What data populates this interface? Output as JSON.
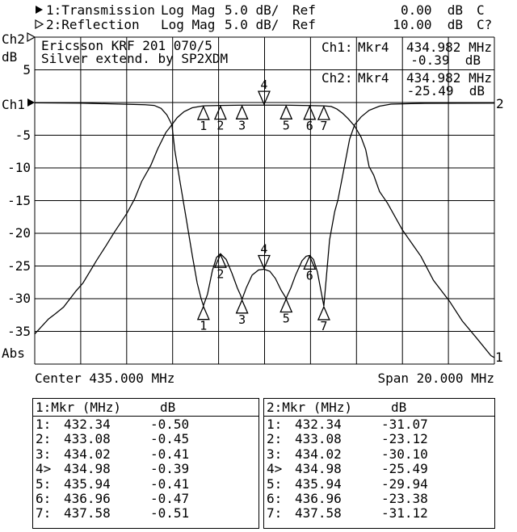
{
  "header": {
    "line1": {
      "pointer": "filled-right-triangle",
      "label": "1:Transmission",
      "format": "Log Mag",
      "scale": "5.0 dB/",
      "ref_label": "Ref",
      "ref_value": "0.00  dB",
      "cal": "C"
    },
    "line2": {
      "pointer": "open-right-triangle",
      "label": "2:Reflection",
      "format": "Log Mag",
      "scale": "5.0 dB/",
      "ref_label": "Ref",
      "ref_value": "10.00  dB",
      "cal": "C?"
    }
  },
  "left_axis": {
    "ch2_label": "Ch2",
    "db_label": "dB",
    "ch1_label": "Ch1",
    "abs_label": "Abs",
    "tick_labels": [
      "5",
      "-5",
      "-10",
      "-15",
      "-20",
      "-25",
      "-30",
      "-35"
    ]
  },
  "right_edge": {
    "trace2_label": "2",
    "trace1_label": "1"
  },
  "annotation": {
    "line1": "Ericsson KRF 201 070/5",
    "line2": "Silver extend. by SP2XDM"
  },
  "readouts": {
    "ch1": {
      "label": "Ch1:",
      "mkr": "Mkr4",
      "freq": "434.982 MHz",
      "value": "-0.39  dB"
    },
    "ch2": {
      "label": "Ch2:",
      "mkr": "Mkr4",
      "freq": "434.982 MHz",
      "value": "-25.49  dB"
    }
  },
  "x_axis": {
    "center": "Center 435.000 MHz",
    "span": "Span 20.000 MHz"
  },
  "tables": [
    {
      "title": "1:Mkr (MHz)",
      "unit": "dB",
      "rows": [
        [
          "1:",
          "432.34",
          "-0.50"
        ],
        [
          "2:",
          "433.08",
          "-0.45"
        ],
        [
          "3:",
          "434.02",
          "-0.41"
        ],
        [
          "4>",
          "434.98",
          "-0.39"
        ],
        [
          "5:",
          "435.94",
          "-0.41"
        ],
        [
          "6:",
          "436.96",
          "-0.47"
        ],
        [
          "7:",
          "437.58",
          "-0.51"
        ]
      ]
    },
    {
      "title": "2:Mkr (MHz)",
      "unit": "dB",
      "rows": [
        [
          "1:",
          "432.34",
          "-31.07"
        ],
        [
          "2:",
          "433.08",
          "-23.12"
        ],
        [
          "3:",
          "434.02",
          "-30.10"
        ],
        [
          "4>",
          "434.98",
          "-25.49"
        ],
        [
          "5:",
          "435.94",
          "-29.94"
        ],
        [
          "6:",
          "436.96",
          "-23.38"
        ],
        [
          "7:",
          "437.58",
          "-31.12"
        ]
      ]
    }
  ],
  "chart_data": {
    "type": "line",
    "title": "Ericsson KRF 201 070/5 bandpass filter - transmission and reflection",
    "x_axis": {
      "center_MHz": 435.0,
      "span_MHz": 20.0,
      "min_MHz": 425.0,
      "max_MHz": 445.0
    },
    "y_axis": {
      "units": "dB",
      "dB_per_div": 5.0,
      "top_dB": 10,
      "bottom_dB": -40,
      "ch1_ref_dB": 0.0,
      "ch2_ref_dB": 10.0,
      "tick_dB": [
        5,
        -5,
        -10,
        -15,
        -20,
        -25,
        -30,
        -35
      ]
    },
    "grid": {
      "x_divisions": 10,
      "y_divisions": 10
    },
    "series": [
      {
        "name": "Ch1 Transmission",
        "points": [
          [
            425.0,
            -35.4
          ],
          [
            425.6,
            -33.1
          ],
          [
            425.9,
            -32.3
          ],
          [
            426.25,
            -31.3
          ],
          [
            426.8,
            -28.8
          ],
          [
            427.1,
            -27.6
          ],
          [
            427.7,
            -24.1
          ],
          [
            428.1,
            -21.9
          ],
          [
            428.45,
            -19.9
          ],
          [
            429.0,
            -17.0
          ],
          [
            429.35,
            -14.7
          ],
          [
            429.65,
            -12.1
          ],
          [
            430.05,
            -9.6
          ],
          [
            430.35,
            -7.1
          ],
          [
            430.7,
            -4.6
          ],
          [
            430.97,
            -3.4
          ],
          [
            431.2,
            -2.3
          ],
          [
            431.5,
            -1.4
          ],
          [
            431.85,
            -0.8
          ],
          [
            432.3,
            -0.52
          ],
          [
            432.34,
            -0.5
          ],
          [
            433.08,
            -0.45
          ],
          [
            434.02,
            -0.41
          ],
          [
            434.98,
            -0.39
          ],
          [
            435.94,
            -0.41
          ],
          [
            436.96,
            -0.47
          ],
          [
            437.58,
            -0.51
          ],
          [
            437.9,
            -0.6
          ],
          [
            438.15,
            -1.0
          ],
          [
            438.4,
            -1.65
          ],
          [
            438.65,
            -2.5
          ],
          [
            438.92,
            -3.6
          ],
          [
            439.2,
            -5.3
          ],
          [
            439.4,
            -7.2
          ],
          [
            439.55,
            -9.8
          ],
          [
            439.75,
            -11.1
          ],
          [
            440.0,
            -13.6
          ],
          [
            440.35,
            -15.4
          ],
          [
            441.0,
            -19.5
          ],
          [
            441.8,
            -23.5
          ],
          [
            442.35,
            -27.2
          ],
          [
            443.05,
            -30.4
          ],
          [
            443.6,
            -33.4
          ],
          [
            444.2,
            -35.9
          ],
          [
            444.85,
            -38.7
          ],
          [
            445.0,
            -39.0
          ]
        ]
      },
      {
        "name": "Ch2 Reflection",
        "points": [
          [
            425.0,
            -0.05
          ],
          [
            427.0,
            -0.1
          ],
          [
            428.8,
            -0.25
          ],
          [
            429.8,
            -0.35
          ],
          [
            430.2,
            -0.45
          ],
          [
            430.5,
            -0.9
          ],
          [
            430.75,
            -1.9
          ],
          [
            430.97,
            -3.4
          ],
          [
            431.1,
            -7.4
          ],
          [
            431.33,
            -12.3
          ],
          [
            431.57,
            -17.3
          ],
          [
            431.86,
            -23.5
          ],
          [
            432.07,
            -27.6
          ],
          [
            432.24,
            -30.0
          ],
          [
            432.34,
            -31.07
          ],
          [
            432.52,
            -29.3
          ],
          [
            432.73,
            -25.7
          ],
          [
            432.91,
            -23.7
          ],
          [
            433.08,
            -23.12
          ],
          [
            433.33,
            -24.0
          ],
          [
            433.58,
            -26.1
          ],
          [
            433.82,
            -28.4
          ],
          [
            433.96,
            -29.5
          ],
          [
            434.02,
            -30.1
          ],
          [
            434.21,
            -28.3
          ],
          [
            434.46,
            -26.4
          ],
          [
            434.74,
            -25.6
          ],
          [
            434.98,
            -25.49
          ],
          [
            435.23,
            -25.8
          ],
          [
            435.47,
            -26.9
          ],
          [
            435.72,
            -28.7
          ],
          [
            435.94,
            -29.94
          ],
          [
            436.14,
            -28.4
          ],
          [
            436.35,
            -26.4
          ],
          [
            436.63,
            -24.2
          ],
          [
            436.81,
            -23.5
          ],
          [
            436.96,
            -23.38
          ],
          [
            437.13,
            -24.0
          ],
          [
            437.3,
            -25.9
          ],
          [
            437.44,
            -28.5
          ],
          [
            437.58,
            -31.12
          ],
          [
            437.83,
            -21.0
          ],
          [
            438.05,
            -16.7
          ],
          [
            438.2,
            -14.8
          ],
          [
            438.5,
            -9.3
          ],
          [
            438.7,
            -5.6
          ],
          [
            438.92,
            -3.4
          ],
          [
            439.2,
            -2.2
          ],
          [
            439.55,
            -1.2
          ],
          [
            440.0,
            -0.55
          ],
          [
            440.5,
            -0.25
          ],
          [
            442.0,
            -0.12
          ],
          [
            445.0,
            -0.1
          ]
        ]
      }
    ],
    "markers": [
      {
        "n": "1",
        "f": 432.34,
        "ch1": -0.5,
        "ch2": -31.07,
        "active": false
      },
      {
        "n": "2",
        "f": 433.08,
        "ch1": -0.45,
        "ch2": -23.12,
        "active": false
      },
      {
        "n": "3",
        "f": 434.02,
        "ch1": -0.41,
        "ch2": -30.1,
        "active": false
      },
      {
        "n": "4",
        "f": 434.98,
        "ch1": -0.39,
        "ch2": -25.49,
        "active": true
      },
      {
        "n": "5",
        "f": 435.94,
        "ch1": -0.41,
        "ch2": -29.94,
        "active": false
      },
      {
        "n": "6",
        "f": 436.96,
        "ch1": -0.47,
        "ch2": -23.38,
        "active": false
      },
      {
        "n": "7",
        "f": 437.58,
        "ch1": -0.51,
        "ch2": -31.12,
        "active": false
      }
    ]
  }
}
